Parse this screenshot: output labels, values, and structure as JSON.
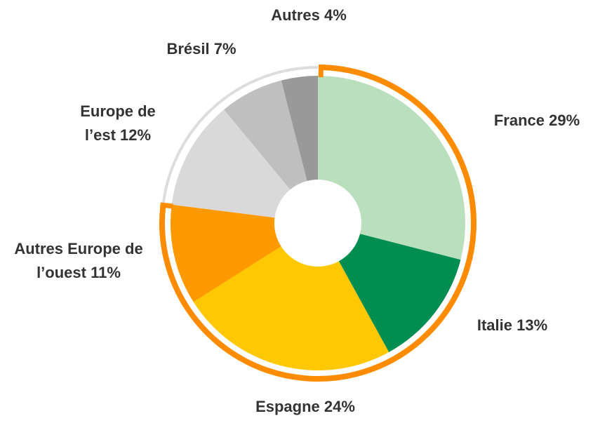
{
  "chart_data": {
    "type": "pie",
    "donut": true,
    "categories": [
      "France",
      "Italie",
      "Espagne",
      "Autres Europe de l’ouest",
      "Europe de l’est",
      "Brésil",
      "Autres"
    ],
    "values": [
      29,
      13,
      24,
      11,
      12,
      7,
      4
    ],
    "value_labels": [
      "29%",
      "13%",
      "24%",
      "11%",
      "12%",
      "7%",
      "4%"
    ],
    "colors": [
      "#b9dfbd",
      "#008e50",
      "#ffc800",
      "#ff9900",
      "#d9d9d9",
      "#bfbfbf",
      "#999999"
    ]
  }
}
